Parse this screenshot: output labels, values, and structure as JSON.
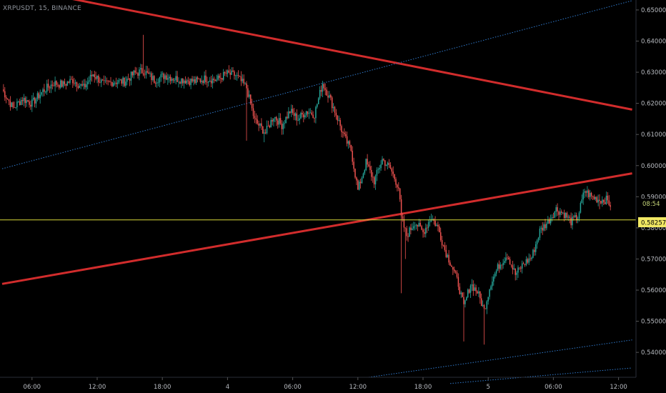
{
  "header": {
    "symbol": "XRPUSDT",
    "interval": "15",
    "exchange": "BINANCE"
  },
  "colors": {
    "background": "#000000",
    "bull": "#26a69a",
    "bear": "#ef5350",
    "trendline": "#d12c2c",
    "channel": "#2f78c9",
    "price_line": "#d8d83a",
    "axis_text": "#b9bcc2"
  },
  "badges": {
    "countdown": "08:54",
    "last_price": "0.58257"
  },
  "chart_data": {
    "type": "candlestick",
    "title": "",
    "xlabel": "",
    "ylabel": "",
    "ylim": [
      0.532,
      0.6532
    ],
    "y_ticks": [
      "0.65000",
      "0.64000",
      "0.63000",
      "0.62000",
      "0.61000",
      "0.60000",
      "0.59000",
      "0.58000",
      "0.57000",
      "0.56000",
      "0.55000",
      "0.54000"
    ],
    "x_ticks": [
      {
        "label": "06:00",
        "bar": 22
      },
      {
        "label": "12:00",
        "bar": 70
      },
      {
        "label": "18:00",
        "bar": 118
      },
      {
        "label": "4",
        "bar": 166
      },
      {
        "label": "06:00",
        "bar": 214
      },
      {
        "label": "12:00",
        "bar": 262
      },
      {
        "label": "18:00",
        "bar": 310
      },
      {
        "label": "5",
        "bar": 358
      },
      {
        "label": "06:00",
        "bar": 406
      },
      {
        "label": "12:00",
        "bar": 454
      }
    ],
    "grid": false,
    "current_price": 0.58257,
    "anchors": [
      [
        0,
        0.6245
      ],
      [
        8,
        0.6185
      ],
      [
        15,
        0.6215
      ],
      [
        22,
        0.62
      ],
      [
        30,
        0.624
      ],
      [
        38,
        0.6265
      ],
      [
        45,
        0.626
      ],
      [
        52,
        0.6275
      ],
      [
        60,
        0.625
      ],
      [
        67,
        0.6295
      ],
      [
        75,
        0.626
      ],
      [
        82,
        0.627
      ],
      [
        90,
        0.627
      ],
      [
        97,
        0.6295
      ],
      [
        104,
        0.6305
      ],
      [
        112,
        0.6275
      ],
      [
        120,
        0.629
      ],
      [
        127,
        0.628
      ],
      [
        135,
        0.6275
      ],
      [
        142,
        0.627
      ],
      [
        150,
        0.628
      ],
      [
        158,
        0.6275
      ],
      [
        165,
        0.6295
      ],
      [
        172,
        0.629
      ],
      [
        180,
        0.625
      ],
      [
        186,
        0.6145
      ],
      [
        194,
        0.6105
      ],
      [
        200,
        0.616
      ],
      [
        206,
        0.613
      ],
      [
        212,
        0.6175
      ],
      [
        218,
        0.615
      ],
      [
        224,
        0.6175
      ],
      [
        230,
        0.6165
      ],
      [
        236,
        0.6265
      ],
      [
        241,
        0.622
      ],
      [
        246,
        0.6165
      ],
      [
        252,
        0.609
      ],
      [
        257,
        0.605
      ],
      [
        262,
        0.592
      ],
      [
        268,
        0.601
      ],
      [
        274,
        0.595
      ],
      [
        280,
        0.602
      ],
      [
        286,
        0.599
      ],
      [
        292,
        0.593
      ],
      [
        294,
        0.583
      ],
      [
        298,
        0.5775
      ],
      [
        304,
        0.582
      ],
      [
        310,
        0.5785
      ],
      [
        316,
        0.5835
      ],
      [
        321,
        0.58
      ],
      [
        326,
        0.573
      ],
      [
        331,
        0.568
      ],
      [
        336,
        0.562
      ],
      [
        340,
        0.5545
      ],
      [
        345,
        0.562
      ],
      [
        350,
        0.5595
      ],
      [
        355,
        0.5535
      ],
      [
        360,
        0.5625
      ],
      [
        366,
        0.568
      ],
      [
        372,
        0.5715
      ],
      [
        378,
        0.565
      ],
      [
        384,
        0.5685
      ],
      [
        390,
        0.5705
      ],
      [
        396,
        0.579
      ],
      [
        402,
        0.582
      ],
      [
        408,
        0.586
      ],
      [
        414,
        0.5845
      ],
      [
        419,
        0.582
      ],
      [
        424,
        0.5835
      ],
      [
        429,
        0.592
      ],
      [
        434,
        0.59
      ],
      [
        440,
        0.589
      ],
      [
        445,
        0.589
      ],
      [
        448,
        0.5875
      ]
    ],
    "trendlines": [
      {
        "name": "",
        "style": "solid",
        "points": [
          [
            0,
            0.658
          ],
          [
            464,
            0.618
          ]
        ]
      },
      {
        "name": "",
        "style": "solid",
        "points": [
          [
            0,
            0.562
          ],
          [
            464,
            0.5975
          ]
        ]
      },
      {
        "name": "",
        "style": "dotted",
        "points": [
          [
            0,
            0.599
          ],
          [
            464,
            0.653
          ]
        ]
      },
      {
        "name": "",
        "style": "dotted",
        "points": [
          [
            270,
            0.532
          ],
          [
            464,
            0.544
          ]
        ]
      },
      {
        "name": "",
        "style": "dotted",
        "points": [
          [
            330,
            0.53
          ],
          [
            464,
            0.535
          ]
        ]
      }
    ]
  }
}
